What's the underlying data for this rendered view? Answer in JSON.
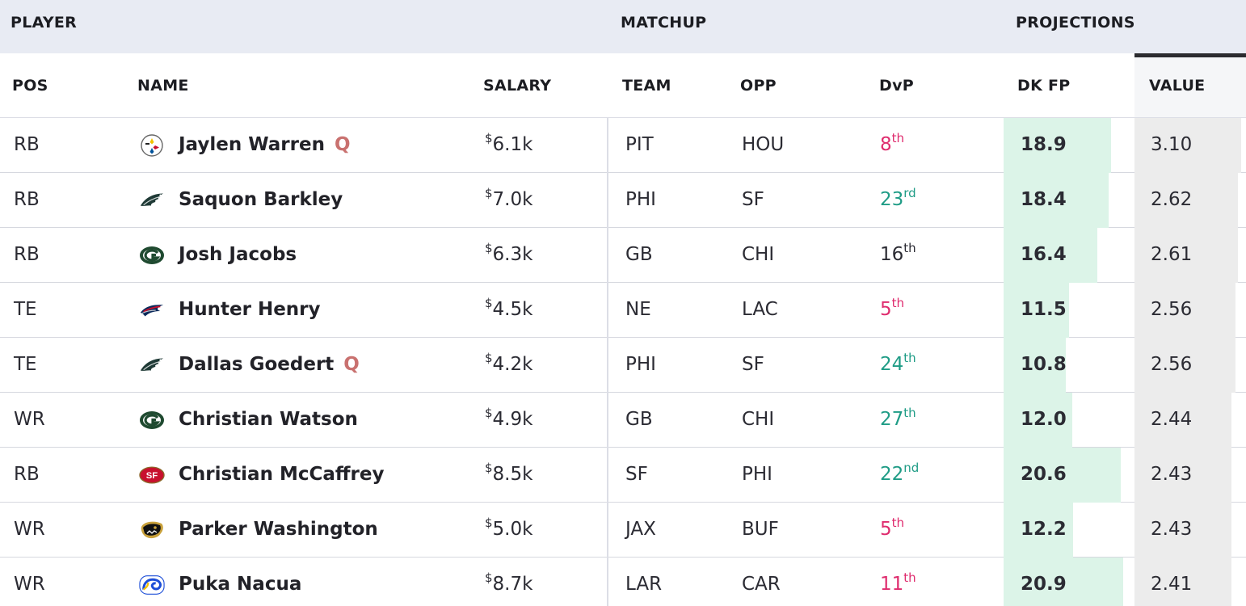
{
  "group_headers": {
    "player": "PLAYER",
    "matchup": "MATCHUP",
    "projections": "PROJECTIONS"
  },
  "columns": {
    "pos": "POS",
    "name": "NAME",
    "salary": "SALARY",
    "team": "TEAM",
    "opp": "OPP",
    "dvp": "DvP",
    "dkfp": "DK FP",
    "value": "VALUE"
  },
  "colors": {
    "dvp_good": "#1f9c86",
    "dvp_bad": "#df2c6e",
    "fp_bar": "#dcf4e8",
    "value_bar": "#ececec"
  },
  "rows": [
    {
      "pos": "RB",
      "team_logo": "steelers-logo-icon",
      "name": "Jaylen Warren",
      "status": "Q",
      "salary_symbol": "$",
      "salary": "6.1k",
      "team": "PIT",
      "opp": "HOU",
      "dvp_num": "8",
      "dvp_suffix": "th",
      "dvp_tone": "bad",
      "dkfp": "18.9",
      "value": "3.10",
      "fp_fill": 0.9,
      "value_fill": 0.96
    },
    {
      "pos": "RB",
      "team_logo": "eagles-logo-icon",
      "name": "Saquon Barkley",
      "status": "",
      "salary_symbol": "$",
      "salary": "7.0k",
      "team": "PHI",
      "opp": "SF",
      "dvp_num": "23",
      "dvp_suffix": "rd",
      "dvp_tone": "good",
      "dkfp": "18.4",
      "value": "2.62",
      "fp_fill": 0.875,
      "value_fill": 0.926
    },
    {
      "pos": "RB",
      "team_logo": "packers-logo-icon",
      "name": "Josh Jacobs",
      "status": "",
      "salary_symbol": "$",
      "salary": "6.3k",
      "team": "GB",
      "opp": "CHI",
      "dvp_num": "16",
      "dvp_suffix": "th",
      "dvp_tone": "neutral",
      "dkfp": "16.4",
      "value": "2.61",
      "fp_fill": 0.784,
      "value_fill": 0.926
    },
    {
      "pos": "TE",
      "team_logo": "patriots-logo-icon",
      "name": "Hunter Henry",
      "status": "",
      "salary_symbol": "$",
      "salary": "4.5k",
      "team": "NE",
      "opp": "LAC",
      "dvp_num": "5",
      "dvp_suffix": "th",
      "dvp_tone": "bad",
      "dkfp": "11.5",
      "value": "2.56",
      "fp_fill": 0.55,
      "value_fill": 0.904
    },
    {
      "pos": "TE",
      "team_logo": "eagles-logo-icon",
      "name": "Dallas Goedert",
      "status": "Q",
      "salary_symbol": "$",
      "salary": "4.2k",
      "team": "PHI",
      "opp": "SF",
      "dvp_num": "24",
      "dvp_suffix": "th",
      "dvp_tone": "good",
      "dkfp": "10.8",
      "value": "2.56",
      "fp_fill": 0.52,
      "value_fill": 0.904
    },
    {
      "pos": "WR",
      "team_logo": "packers-logo-icon",
      "name": "Christian Watson",
      "status": "",
      "salary_symbol": "$",
      "salary": "4.9k",
      "team": "GB",
      "opp": "CHI",
      "dvp_num": "27",
      "dvp_suffix": "th",
      "dvp_tone": "good",
      "dkfp": "12.0",
      "value": "2.44",
      "fp_fill": 0.574,
      "value_fill": 0.868
    },
    {
      "pos": "RB",
      "team_logo": "49ers-logo-icon",
      "name": "Christian McCaffrey",
      "status": "",
      "salary_symbol": "$",
      "salary": "8.5k",
      "team": "SF",
      "opp": "PHI",
      "dvp_num": "22",
      "dvp_suffix": "nd",
      "dvp_tone": "good",
      "dkfp": "20.6",
      "value": "2.43",
      "fp_fill": 0.98,
      "value_fill": 0.868
    },
    {
      "pos": "WR",
      "team_logo": "jaguars-logo-icon",
      "name": "Parker Washington",
      "status": "",
      "salary_symbol": "$",
      "salary": "5.0k",
      "team": "JAX",
      "opp": "BUF",
      "dvp_num": "5",
      "dvp_suffix": "th",
      "dvp_tone": "bad",
      "dkfp": "12.2",
      "value": "2.43",
      "fp_fill": 0.584,
      "value_fill": 0.868
    },
    {
      "pos": "WR",
      "team_logo": "rams-logo-icon",
      "name": "Puka Nacua",
      "status": "",
      "salary_symbol": "$",
      "salary": "8.7k",
      "team": "LAR",
      "opp": "CAR",
      "dvp_num": "11",
      "dvp_suffix": "th",
      "dvp_tone": "bad",
      "dkfp": "20.9",
      "value": "2.41",
      "fp_fill": 1.0,
      "value_fill": 0.868
    }
  ]
}
